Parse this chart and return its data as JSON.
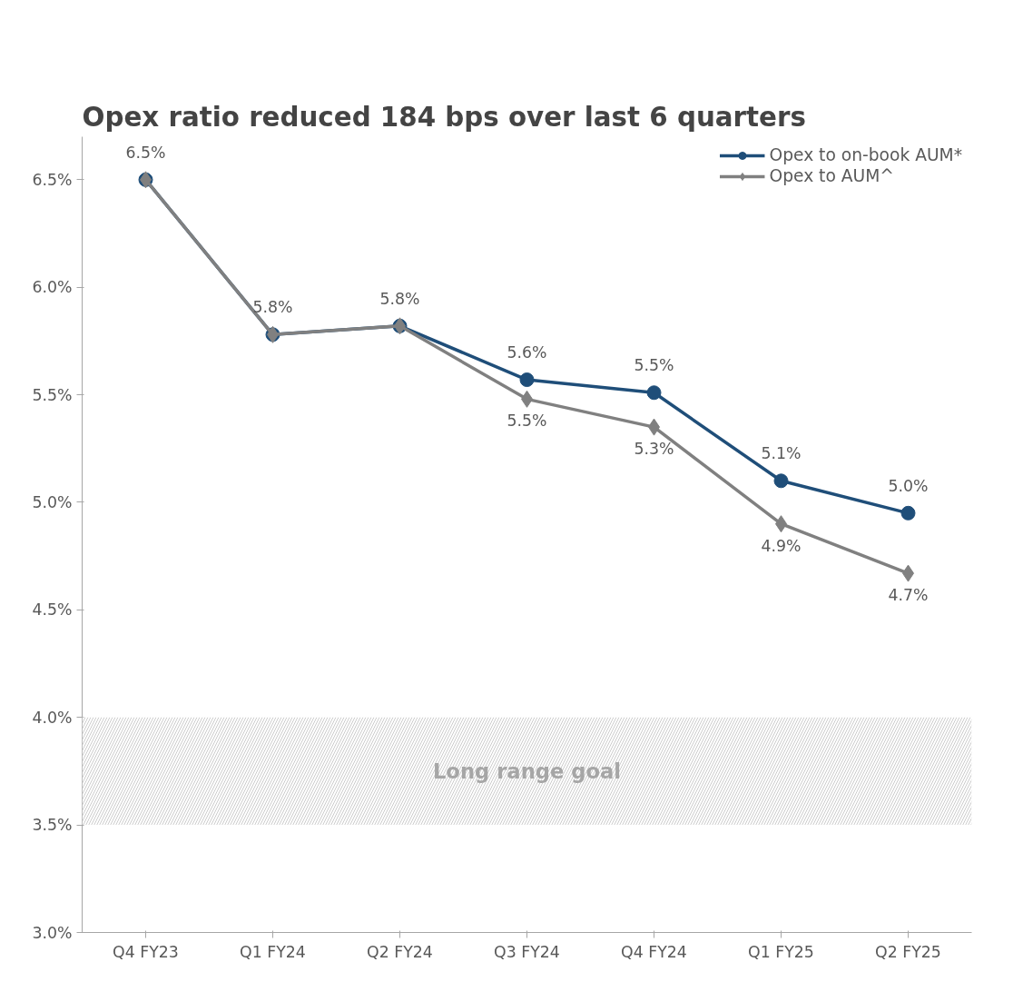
{
  "chart_data": {
    "type": "line",
    "title": "Opex ratio reduced 184 bps over last 6 quarters",
    "categories": [
      "Q4 FY23",
      "Q1 FY24",
      "Q2 FY24",
      "Q3 FY24",
      "Q4 FY24",
      "Q1 FY25",
      "Q2 FY25"
    ],
    "series": [
      {
        "name": "Opex to on-book AUM*",
        "color": "#1f4e79",
        "marker": "circle",
        "values": [
          6.5,
          5.78,
          5.82,
          5.57,
          5.51,
          5.1,
          4.95
        ],
        "value_labels": [
          "6.5%",
          "5.8%",
          "5.8%",
          "5.6%",
          "5.5%",
          "5.1%",
          "5.0%"
        ]
      },
      {
        "name": "Opex to AUM^",
        "color": "#808080",
        "marker": "diamond",
        "values": [
          6.5,
          5.78,
          5.82,
          5.48,
          5.35,
          4.9,
          4.67
        ],
        "value_labels": [
          null,
          null,
          null,
          "5.5%",
          "5.3%",
          "4.9%",
          "4.7%"
        ]
      }
    ],
    "ylim": [
      3.0,
      6.7
    ],
    "yticks": [
      {
        "value": 3.0,
        "label": "3.0%"
      },
      {
        "value": 3.5,
        "label": "3.5%"
      },
      {
        "value": 4.0,
        "label": "4.0%"
      },
      {
        "value": 4.5,
        "label": "4.5%"
      },
      {
        "value": 5.0,
        "label": "5.0%"
      },
      {
        "value": 5.5,
        "label": "5.5%"
      },
      {
        "value": 6.0,
        "label": "6.0%"
      },
      {
        "value": 6.5,
        "label": "6.5%"
      }
    ],
    "bands": [
      {
        "axis": "y",
        "from": 3.5,
        "to": 4.0,
        "label": "Long range goal",
        "color": "#bfbfbf"
      }
    ],
    "legend": "top right",
    "grid": false,
    "line_style": "solid"
  }
}
